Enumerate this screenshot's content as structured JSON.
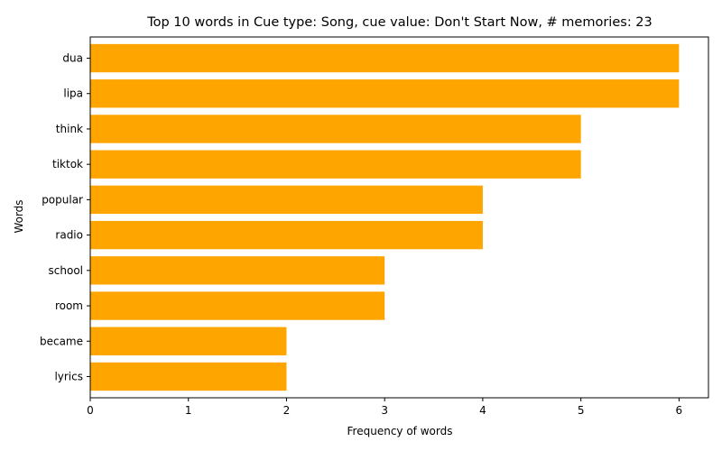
{
  "chart_data": {
    "type": "bar",
    "orientation": "horizontal",
    "title": "Top 10 words in Cue type: Song, cue value: Don't Start Now, # memories: 23",
    "xlabel": "Frequency of words",
    "ylabel": "Words",
    "categories": [
      "dua",
      "lipa",
      "think",
      "tiktok",
      "popular",
      "radio",
      "school",
      "room",
      "became",
      "lyrics"
    ],
    "values": [
      6,
      6,
      5,
      5,
      4,
      4,
      3,
      3,
      2,
      2
    ],
    "xlim": [
      0,
      6.3
    ],
    "xticks": [
      0,
      1,
      2,
      3,
      4,
      5,
      6
    ],
    "bar_color": "#ffa500",
    "grid": false,
    "legend": "none"
  }
}
